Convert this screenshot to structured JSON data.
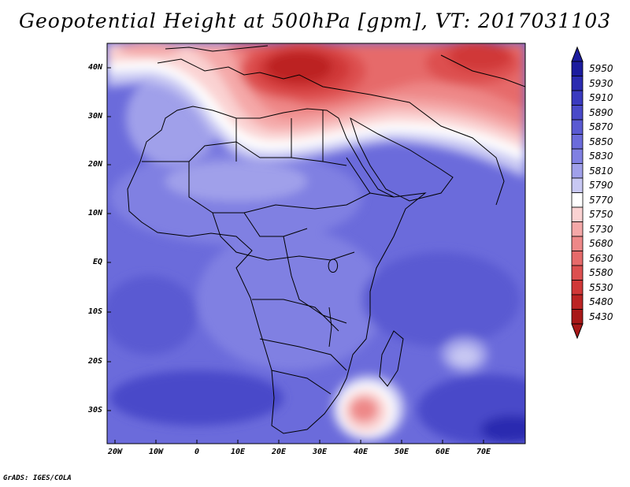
{
  "title": "Geopotential Height at 500hPa [gpm], VT: 2017031103",
  "credit": "GrADS: IGES/COLA",
  "y_axis_labels": [
    "40N",
    "30N",
    "20N",
    "10N",
    "EQ",
    "10S",
    "20S",
    "30S"
  ],
  "x_axis_labels": [
    "20W",
    "10W",
    "0",
    "10E",
    "20E",
    "30E",
    "40E",
    "50E",
    "60E",
    "70E"
  ],
  "colorbar": {
    "levels": [
      "5950",
      "5930",
      "5910",
      "5890",
      "5870",
      "5850",
      "5830",
      "5810",
      "5790",
      "5770",
      "5750",
      "5730",
      "5680",
      "5630",
      "5580",
      "5530",
      "5480",
      "5430"
    ],
    "colors": [
      "#1c1c9e",
      "#2b2bb0",
      "#3a3abf",
      "#4a4ac9",
      "#5a5ad2",
      "#6b6bdb",
      "#8080e2",
      "#a0a0ea",
      "#c8c8f3",
      "#ffffff",
      "#fad2d2",
      "#f4a8a8",
      "#ee8888",
      "#e66a6a",
      "#dd5050",
      "#d03838",
      "#bc2424",
      "#a81818"
    ]
  }
}
